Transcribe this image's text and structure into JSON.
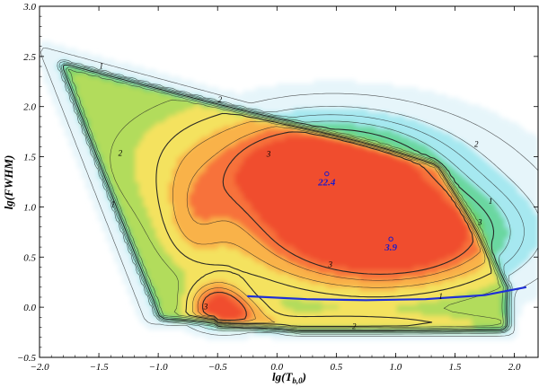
{
  "chart_data": {
    "type": "heatmap",
    "title": "",
    "xlabel": "lg(T",
    "xlabel_sub": "b,0",
    "xlabel_close": ")",
    "ylabel": "lg(FWHM)",
    "xlim": [
      -2.0,
      2.2
    ],
    "ylim": [
      -0.5,
      3.0
    ],
    "x_ticks": [
      -2.0,
      -1.5,
      -1.0,
      -0.5,
      0.0,
      0.5,
      1.0,
      1.5,
      2.0
    ],
    "x_tick_labels": [
      "−2.0",
      "−1.5",
      "−1.0",
      "−0.5",
      "0.0",
      "0.5",
      "1.0",
      "1.5",
      "2.0"
    ],
    "y_ticks": [
      -0.5,
      0.0,
      0.5,
      1.0,
      1.5,
      2.0,
      2.5,
      3.0
    ],
    "y_tick_labels": [
      "−0.5",
      "0.0",
      "0.5",
      "1.0",
      "1.5",
      "2.0",
      "2.5",
      "3.0"
    ],
    "contour_labels": [
      {
        "text": "1",
        "x": -1.48,
        "y": 2.38
      },
      {
        "text": "2",
        "x": -0.48,
        "y": 2.04
      },
      {
        "text": "2",
        "x": 1.68,
        "y": 1.6
      },
      {
        "text": "1",
        "x": 1.8,
        "y": 1.03
      },
      {
        "text": "2",
        "x": -1.32,
        "y": 1.51
      },
      {
        "text": "1",
        "x": -1.38,
        "y": 1.0
      },
      {
        "text": "3",
        "x": -0.07,
        "y": 1.5
      },
      {
        "text": "3",
        "x": 1.71,
        "y": 0.82
      },
      {
        "text": "3",
        "x": 0.45,
        "y": 0.4
      },
      {
        "text": "3",
        "x": -0.6,
        "y": -0.02
      },
      {
        "text": "1",
        "x": 1.38,
        "y": 0.08
      },
      {
        "text": "2",
        "x": 0.65,
        "y": -0.22
      }
    ],
    "peaks": [
      {
        "label": "22.4",
        "x": 0.42,
        "y": 1.33
      },
      {
        "label": "3.9",
        "x": 0.96,
        "y": 0.68
      }
    ],
    "fit_line": {
      "color": "#1e2fd6",
      "x": [
        -0.25,
        0.25,
        0.75,
        1.25,
        1.75,
        2.1
      ],
      "y": [
        0.11,
        0.08,
        0.07,
        0.08,
        0.12,
        0.2
      ]
    },
    "colors": {
      "scale": [
        "#ffffff",
        "#e6f5fa",
        "#a6e8f0",
        "#6ad7a0",
        "#66d06a",
        "#b2dc5c",
        "#f4e25e",
        "#f9b24a",
        "#f7723a",
        "#f04e2e"
      ],
      "contour": "#222222",
      "peak": "#1a1acc"
    }
  }
}
